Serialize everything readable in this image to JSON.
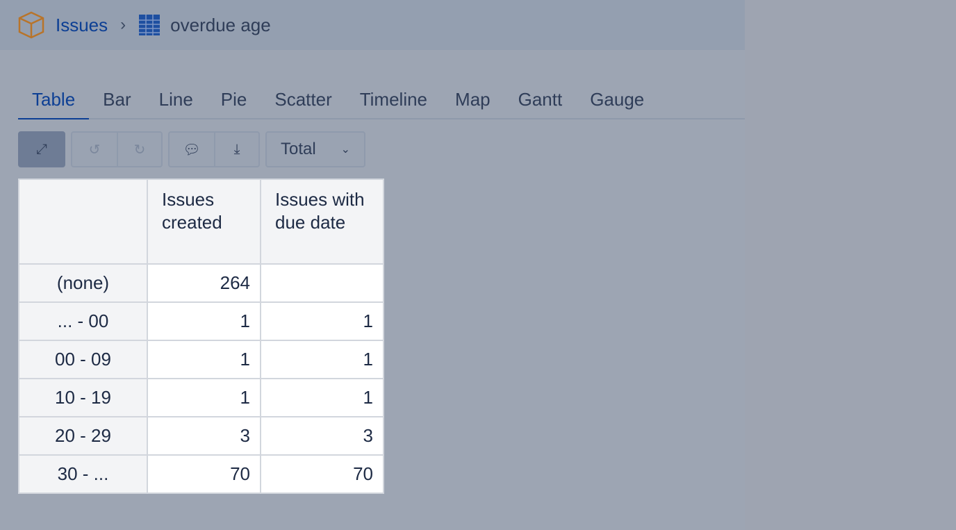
{
  "breadcrumb": {
    "root": "Issues",
    "current": "overdue age"
  },
  "tabs": [
    "Table",
    "Bar",
    "Line",
    "Pie",
    "Scatter",
    "Timeline",
    "Map",
    "Gantt",
    "Gauge"
  ],
  "toolbar": {
    "dropdown": "Total"
  },
  "table": {
    "headers": [
      "",
      "Issues created",
      "Issues with due date"
    ],
    "rows": [
      {
        "label": "(none)",
        "created": "264",
        "due": ""
      },
      {
        "label": "... - 00",
        "created": "1",
        "due": "1"
      },
      {
        "label": "00 - 09",
        "created": "1",
        "due": "1"
      },
      {
        "label": "10 - 19",
        "created": "1",
        "due": "1"
      },
      {
        "label": "20 - 29",
        "created": "3",
        "due": "3"
      },
      {
        "label": "30 - ...",
        "created": "70",
        "due": "70"
      }
    ]
  }
}
